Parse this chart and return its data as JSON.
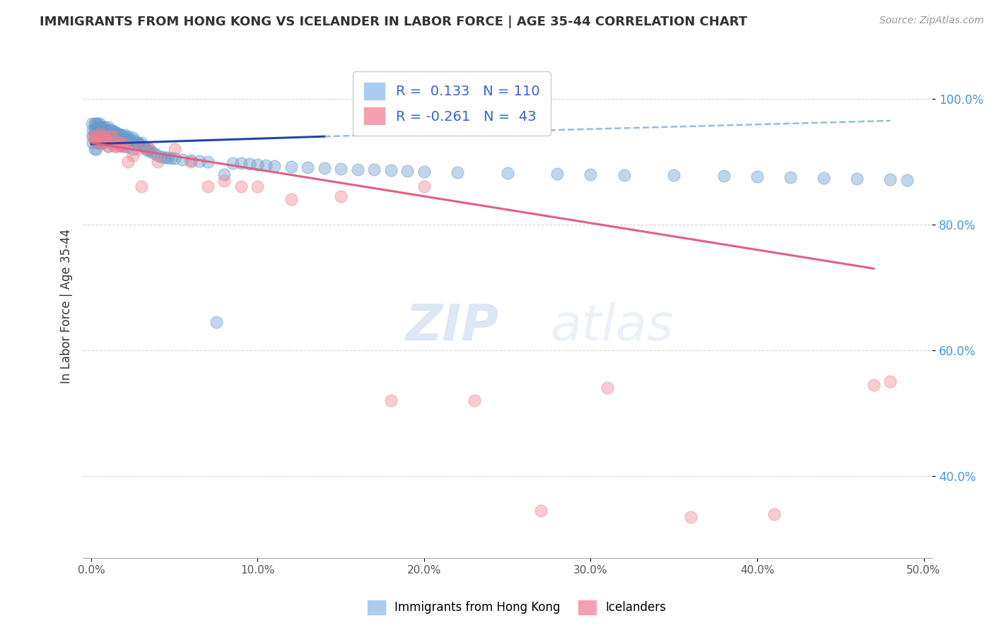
{
  "title": "IMMIGRANTS FROM HONG KONG VS ICELANDER IN LABOR FORCE | AGE 35-44 CORRELATION CHART",
  "source": "Source: ZipAtlas.com",
  "ylabel": "In Labor Force | Age 35-44",
  "x_tick_labels": [
    "0.0%",
    "10.0%",
    "20.0%",
    "30.0%",
    "40.0%",
    "50.0%"
  ],
  "x_tick_vals": [
    0.0,
    0.1,
    0.2,
    0.3,
    0.4,
    0.5
  ],
  "y_tick_labels": [
    "40.0%",
    "60.0%",
    "80.0%",
    "100.0%"
  ],
  "y_tick_vals": [
    0.4,
    0.6,
    0.8,
    1.0
  ],
  "xlim": [
    -0.005,
    0.505
  ],
  "ylim": [
    0.27,
    1.07
  ],
  "blue_color": "#6699cc",
  "pink_color": "#f08090",
  "blue_line_color": "#2244aa",
  "pink_line_color": "#e06080",
  "dashed_line_color": "#99bbdd",
  "background_color": "#ffffff",
  "grid_color": "#cccccc",
  "hk_x": [
    0.0005,
    0.001,
    0.001,
    0.001,
    0.002,
    0.002,
    0.002,
    0.002,
    0.003,
    0.003,
    0.003,
    0.003,
    0.004,
    0.004,
    0.004,
    0.005,
    0.005,
    0.005,
    0.005,
    0.006,
    0.006,
    0.006,
    0.007,
    0.007,
    0.007,
    0.008,
    0.008,
    0.009,
    0.009,
    0.01,
    0.01,
    0.01,
    0.011,
    0.011,
    0.012,
    0.012,
    0.013,
    0.013,
    0.014,
    0.014,
    0.015,
    0.015,
    0.016,
    0.016,
    0.017,
    0.017,
    0.018,
    0.018,
    0.019,
    0.02,
    0.02,
    0.021,
    0.022,
    0.022,
    0.023,
    0.024,
    0.025,
    0.025,
    0.026,
    0.027,
    0.028,
    0.029,
    0.03,
    0.031,
    0.032,
    0.033,
    0.034,
    0.035,
    0.036,
    0.038,
    0.04,
    0.042,
    0.044,
    0.046,
    0.048,
    0.05,
    0.055,
    0.06,
    0.065,
    0.07,
    0.075,
    0.08,
    0.085,
    0.09,
    0.095,
    0.1,
    0.105,
    0.11,
    0.12,
    0.13,
    0.14,
    0.15,
    0.16,
    0.17,
    0.18,
    0.19,
    0.2,
    0.22,
    0.25,
    0.28,
    0.3,
    0.32,
    0.35,
    0.38,
    0.4,
    0.42,
    0.44,
    0.46,
    0.48,
    0.49
  ],
  "hk_y": [
    0.96,
    0.95,
    0.94,
    0.93,
    0.96,
    0.95,
    0.94,
    0.92,
    0.96,
    0.95,
    0.94,
    0.92,
    0.96,
    0.95,
    0.93,
    0.96,
    0.955,
    0.945,
    0.93,
    0.955,
    0.945,
    0.93,
    0.955,
    0.945,
    0.93,
    0.955,
    0.94,
    0.95,
    0.935,
    0.955,
    0.94,
    0.925,
    0.95,
    0.935,
    0.95,
    0.935,
    0.948,
    0.932,
    0.948,
    0.932,
    0.945,
    0.93,
    0.945,
    0.928,
    0.943,
    0.928,
    0.942,
    0.926,
    0.94,
    0.942,
    0.925,
    0.938,
    0.94,
    0.923,
    0.935,
    0.935,
    0.938,
    0.92,
    0.933,
    0.93,
    0.93,
    0.928,
    0.93,
    0.925,
    0.923,
    0.92,
    0.918,
    0.92,
    0.915,
    0.913,
    0.91,
    0.908,
    0.907,
    0.906,
    0.905,
    0.905,
    0.903,
    0.902,
    0.901,
    0.9,
    0.645,
    0.88,
    0.898,
    0.897,
    0.896,
    0.895,
    0.894,
    0.893,
    0.892,
    0.891,
    0.89,
    0.889,
    0.888,
    0.887,
    0.886,
    0.885,
    0.884,
    0.883,
    0.882,
    0.881,
    0.88,
    0.879,
    0.878,
    0.877,
    0.876,
    0.875,
    0.874,
    0.873,
    0.872,
    0.871
  ],
  "hk_blue_line": {
    "x0": 0.0,
    "x1": 0.14,
    "y0": 0.928,
    "y1": 0.94
  },
  "hk_dash_line": {
    "x0": 0.14,
    "x1": 0.48,
    "y0": 0.94,
    "y1": 0.965
  },
  "ic_pink_line": {
    "x0": 0.0,
    "x1": 0.47,
    "y0": 0.93,
    "y1": 0.73
  },
  "ic_x": [
    0.001,
    0.002,
    0.003,
    0.004,
    0.005,
    0.006,
    0.007,
    0.008,
    0.009,
    0.01,
    0.011,
    0.012,
    0.013,
    0.014,
    0.015,
    0.016,
    0.017,
    0.018,
    0.019,
    0.02,
    0.022,
    0.025,
    0.028,
    0.03,
    0.035,
    0.04,
    0.05,
    0.06,
    0.07,
    0.08,
    0.09,
    0.1,
    0.12,
    0.15,
    0.18,
    0.2,
    0.23,
    0.27,
    0.31,
    0.36,
    0.41,
    0.47,
    0.48
  ],
  "ic_y": [
    0.94,
    0.935,
    0.94,
    0.93,
    0.945,
    0.938,
    0.93,
    0.94,
    0.935,
    0.925,
    0.94,
    0.93,
    0.94,
    0.925,
    0.925,
    0.925,
    0.93,
    0.928,
    0.925,
    0.928,
    0.9,
    0.91,
    0.92,
    0.86,
    0.92,
    0.9,
    0.92,
    0.9,
    0.86,
    0.87,
    0.86,
    0.86,
    0.84,
    0.845,
    0.52,
    0.86,
    0.52,
    0.345,
    0.54,
    0.335,
    0.34,
    0.545,
    0.55
  ]
}
